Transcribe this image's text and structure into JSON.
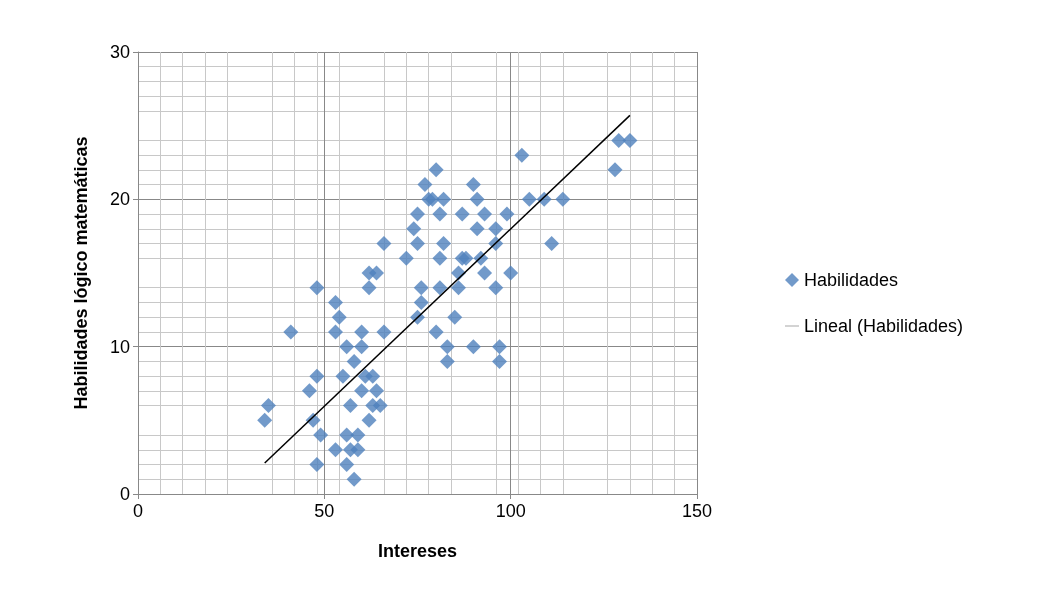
{
  "chart_data": {
    "type": "scatter",
    "xlabel": "Intereses",
    "ylabel": "Habilidades lógico matemáticas",
    "xlim": [
      0,
      150
    ],
    "xticks": [
      0,
      50,
      100,
      150
    ],
    "ylim": [
      0,
      30
    ],
    "yticks": [
      0,
      10,
      20,
      30
    ],
    "grid": true,
    "legend": "right",
    "marker": "diamond",
    "series": [
      {
        "name": "Habilidades",
        "color": "#4f81bd",
        "x": [
          34,
          35,
          41,
          46,
          47,
          48,
          48,
          48,
          49,
          53,
          53,
          54,
          53,
          55,
          56,
          56,
          56,
          57,
          57,
          58,
          58,
          59,
          59,
          60,
          60,
          60,
          61,
          62,
          62,
          62,
          63,
          63,
          64,
          64,
          65,
          66,
          66,
          72,
          74,
          75,
          75,
          75,
          76,
          76,
          77,
          78,
          79,
          80,
          80,
          81,
          81,
          81,
          82,
          82,
          83,
          83,
          85,
          86,
          86,
          87,
          87,
          88,
          90,
          90,
          91,
          91,
          92,
          93,
          93,
          96,
          96,
          96,
          97,
          97,
          99,
          100,
          103,
          105,
          109,
          111,
          114,
          128,
          129,
          132
        ],
        "values": [
          5,
          6,
          11,
          7,
          5,
          8,
          14,
          2,
          4,
          13,
          11,
          12,
          3,
          8,
          10,
          2,
          4,
          3,
          6,
          1,
          9,
          4,
          3,
          11,
          10,
          7,
          8,
          14,
          15,
          5,
          8,
          6,
          15,
          7,
          6,
          11,
          17,
          16,
          18,
          19,
          17,
          12,
          14,
          13,
          21,
          20,
          20,
          11,
          22,
          14,
          19,
          16,
          17,
          20,
          9,
          10,
          12,
          15,
          14,
          19,
          16,
          16,
          10,
          21,
          18,
          20,
          16,
          19,
          15,
          14,
          17,
          18,
          10,
          9,
          19,
          15,
          23,
          20,
          20,
          17,
          20,
          22,
          24,
          24
        ]
      },
      {
        "name": "Lineal (Habilidades)",
        "type": "line",
        "color": "#000000",
        "marker": "none",
        "line_style": "solid",
        "x": [
          34,
          132
        ],
        "values": [
          2.1,
          25.7
        ]
      }
    ]
  }
}
